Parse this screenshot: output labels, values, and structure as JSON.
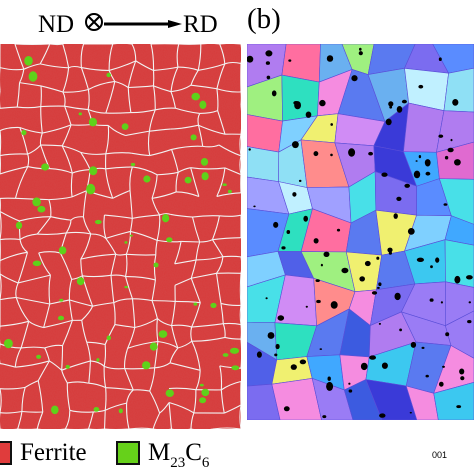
{
  "figure": {
    "axes": {
      "nd_label": "ND",
      "rd_label": "RD"
    },
    "panel_b": {
      "label": "(b)"
    },
    "legend": {
      "ferrite": {
        "label": "Ferrite",
        "color": "#e03c3c"
      },
      "carbide": {
        "label_main": "M",
        "label_sub1": "23",
        "label_c": "C",
        "label_sub2": "6",
        "color": "#66d11a"
      }
    },
    "ipf_key_label": "001"
  },
  "colors": {
    "ferrite_matrix": "#d83a3a",
    "grain_boundary": "#f2f2f2",
    "carbide": "#5fd11a",
    "precipitate_dark": "#000000"
  }
}
